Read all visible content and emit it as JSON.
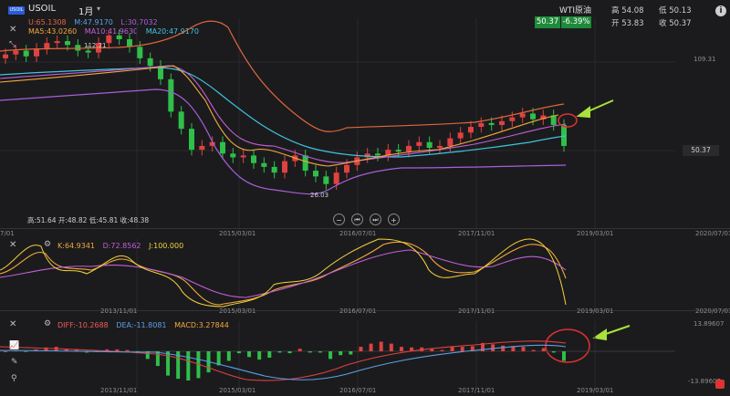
{
  "header": {
    "logo_text": "USOIL",
    "symbol": "USOIL",
    "timeframe": "1月",
    "caret": "▾",
    "bb_legend": [
      {
        "text": "U:65.1308",
        "color": "#e0663e"
      },
      {
        "text": "M:47.9170",
        "color": "#5aa0e6"
      },
      {
        "text": "L:30.7032",
        "color": "#a75fd9"
      }
    ],
    "ma_legend": [
      {
        "text": "MA5:43.0260",
        "color": "#f2a83b"
      },
      {
        "text": "MA10:41.9630",
        "color": "#c25fd9"
      },
      {
        "text": "MA20:47.9170",
        "color": "#3fc4df"
      }
    ]
  },
  "quote": {
    "name": "WTI原油",
    "price": "50.37",
    "change": "-6.39%",
    "high_label": "高 54.08",
    "low_label": "低 50.13",
    "open_label": "开 53.83",
    "close_label": "收 50.37",
    "info_icon": "i"
  },
  "main_panel": {
    "right_axis": [
      "109.31",
      "50.37"
    ],
    "max_label": "112.21",
    "min_label": "26.03",
    "ohlc_text": "高:51.64 开:48.82 低:45.81 收:48.38",
    "controls": [
      "−",
      "⏮",
      "⏭",
      "+"
    ]
  },
  "kdj_panel": {
    "legend": [
      {
        "text": "K:64.9341",
        "color": "#f2a83b"
      },
      {
        "text": "D:72.8562",
        "color": "#c25fd9"
      },
      {
        "text": "J:100.000",
        "color": "#f2d23b"
      }
    ]
  },
  "macd_panel": {
    "legend": [
      {
        "text": "DIFF:-10.2688",
        "color": "#f25a5a"
      },
      {
        "text": "DEA:-11.8081",
        "color": "#5aa0e6"
      },
      {
        "text": "MACD:3.27844",
        "color": "#f2a83b"
      }
    ],
    "right_axis_top": "13.89607",
    "right_axis_bottom": "-13.89607"
  },
  "x_axis_labels": [
    "7/01",
    "2013/11/01",
    "2015/03/01",
    "2016/07/01",
    "2017/11/01",
    "2019/03/01",
    "2020/07/01"
  ],
  "colors": {
    "up": "#e04141",
    "down": "#2fbf4a",
    "bg": "#1b1b1d",
    "arrow": "#a8e23a",
    "highlight_circle": "#e03030"
  },
  "chart_data": {
    "type": "line",
    "title": "",
    "series_types": [
      "candlestick",
      "bollinger",
      "moving_average",
      "kdj",
      "macd"
    ],
    "candle_close_path": [
      98,
      100,
      97,
      101,
      104,
      105,
      103,
      100,
      99,
      104,
      108,
      106,
      102,
      96,
      92,
      85,
      68,
      59,
      48,
      50,
      52,
      46,
      44,
      45,
      41,
      39,
      36,
      42,
      45,
      37,
      34,
      30,
      36,
      40,
      44,
      46,
      45,
      48,
      47,
      50,
      52,
      49,
      50,
      54,
      57,
      60,
      62,
      61,
      63,
      65,
      67,
      64,
      66,
      61,
      50
    ],
    "last_close": 50.37,
    "max_price": 112.21,
    "min_price": 26.03
  }
}
